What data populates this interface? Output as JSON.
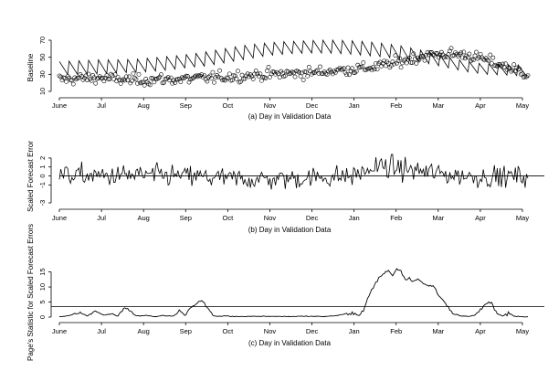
{
  "chart_data": [
    {
      "type": "line",
      "panel": "a",
      "xlabel": "(a) Day in Validation Data",
      "ylabel": "Baseline",
      "x_tick_labels": [
        "June",
        "Jul",
        "Aug",
        "Sep",
        "Oct",
        "Nov",
        "Dec",
        "Jan",
        "Feb",
        "Mar",
        "Apr",
        "May"
      ],
      "y_ticks": [
        10,
        30,
        50,
        70
      ],
      "ylim": [
        10,
        70
      ],
      "x_range_days": [
        0,
        336
      ],
      "series": [
        {
          "style": "sawtooth-line",
          "period_days": 7,
          "high": [
            45,
            46,
            47,
            47,
            48,
            50,
            52,
            55,
            59,
            63,
            66,
            68,
            69,
            70,
            70,
            69,
            67,
            64,
            59,
            53,
            47,
            43,
            42,
            41
          ],
          "low": [
            30,
            30,
            31,
            32,
            33,
            35,
            38,
            40,
            44,
            48,
            52,
            54,
            55,
            55,
            54,
            52,
            50,
            47,
            43,
            38,
            33,
            30,
            29,
            28
          ]
        },
        {
          "style": "circles",
          "mean_profile_days": [
            0,
            14,
            28,
            42,
            56,
            70,
            84,
            98,
            112,
            126,
            140,
            154,
            168,
            182,
            196,
            210,
            224,
            238,
            252,
            266,
            280,
            294,
            308,
            322,
            336
          ],
          "mean_profile_values": [
            24,
            25,
            26,
            24,
            23,
            24,
            24,
            25,
            26,
            28,
            29,
            30,
            31,
            32,
            34,
            36,
            38,
            42,
            48,
            53,
            54,
            52,
            46,
            38,
            30
          ]
        }
      ]
    },
    {
      "type": "line",
      "panel": "b",
      "xlabel": "(b) Day in Validation Data",
      "ylabel": "Scaled Forecast Error",
      "x_tick_labels": [
        "June",
        "Jul",
        "Aug",
        "Sep",
        "Oct",
        "Nov",
        "Dec",
        "Jan",
        "Feb",
        "Mar",
        "Apr",
        "May"
      ],
      "y_ticks": [
        -3,
        -1,
        0,
        1,
        2
      ],
      "ylim": [
        -3,
        2.5
      ],
      "reference_line": 0,
      "mean_profile_days": [
        0,
        30,
        60,
        90,
        120,
        150,
        180,
        210,
        230,
        250,
        270,
        290,
        310,
        336
      ],
      "mean_profile_values": [
        0.1,
        0.0,
        0.1,
        0.0,
        -0.3,
        -0.4,
        -0.2,
        0.0,
        1.1,
        0.7,
        0.3,
        0.0,
        -0.1,
        0.0
      ]
    },
    {
      "type": "line",
      "panel": "c",
      "xlabel": "(c) Day in Validation Data",
      "ylabel": "Page's Statistic for Scaled Forecast Errors",
      "x_tick_labels": [
        "June",
        "Jul",
        "Aug",
        "Sep",
        "Oct",
        "Nov",
        "Dec",
        "Jan",
        "Feb",
        "Mar",
        "Apr",
        "May"
      ],
      "y_ticks": [
        0,
        5,
        10,
        15
      ],
      "ylim": [
        0,
        17
      ],
      "threshold": 3.5,
      "x": [
        0,
        8,
        14,
        20,
        26,
        32,
        38,
        42,
        46,
        50,
        54,
        58,
        62,
        66,
        70,
        74,
        78,
        82,
        86,
        90,
        94,
        98,
        102,
        106,
        110,
        114,
        118,
        122,
        126,
        150,
        165,
        180,
        190,
        200,
        205,
        210,
        215,
        218,
        221,
        224,
        227,
        230,
        233,
        236,
        239,
        242,
        245,
        248,
        251,
        254,
        257,
        260,
        263,
        266,
        269,
        272,
        276,
        282,
        288,
        294,
        298,
        302,
        306,
        310,
        314,
        318,
        322,
        326,
        330,
        336
      ],
      "y": [
        0,
        0.5,
        1.5,
        0.3,
        2.0,
        0.5,
        1.0,
        0.2,
        3.0,
        2.5,
        0.5,
        0.3,
        0.5,
        0.2,
        0.1,
        0.5,
        0.2,
        0.3,
        2.0,
        0.5,
        3.0,
        4.5,
        5.5,
        3.5,
        0.5,
        0.1,
        0.3,
        0.1,
        0.1,
        0.2,
        0.1,
        0.2,
        0.1,
        0.5,
        1.0,
        1.5,
        0.3,
        2.0,
        6.0,
        9.0,
        11.5,
        13.5,
        14.5,
        15.5,
        14.0,
        16.0,
        15.5,
        12.5,
        13.0,
        12.0,
        12.5,
        11.5,
        10.5,
        10.5,
        10.0,
        7.5,
        5.0,
        1.0,
        0.3,
        0.2,
        0.5,
        2.5,
        4.5,
        4.8,
        1.0,
        0.3,
        1.5,
        0.2,
        0.1,
        0
      ]
    }
  ]
}
